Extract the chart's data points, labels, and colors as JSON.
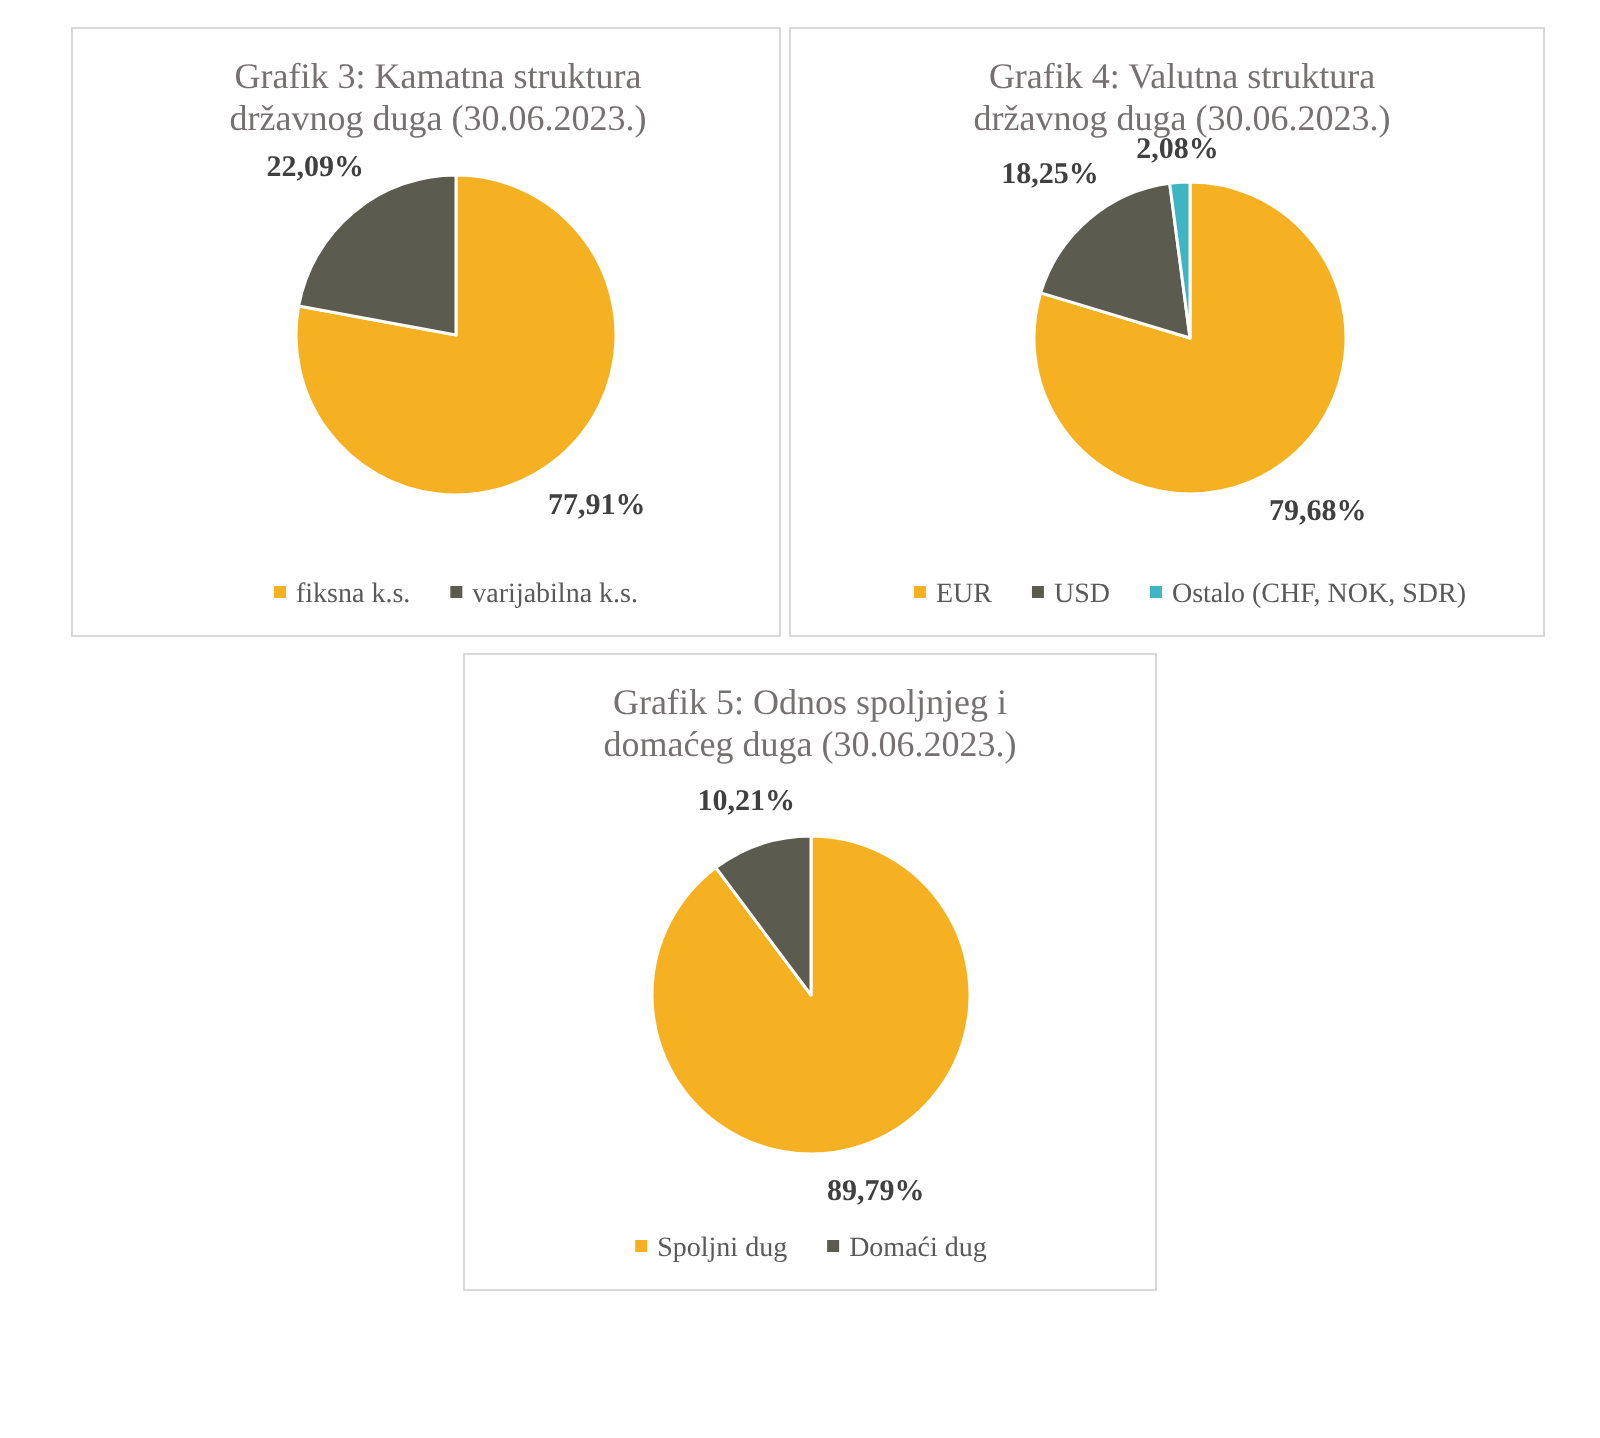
{
  "chart_data": [
    {
      "type": "pie",
      "title": "Grafik 3: Kamatna struktura državnog duga (30.06.2023.)",
      "categories": [
        "fiksna k.s.",
        "varijabilna k.s."
      ],
      "values": [
        77.91,
        22.09
      ],
      "colors": [
        "#f5b122",
        "#5b5c4f"
      ],
      "value_labels": [
        "77,91%",
        "22,09%"
      ],
      "legend": "bottom"
    },
    {
      "type": "pie",
      "title": "Grafik 4: Valutna struktura državnog duga (30.06.2023.)",
      "categories": [
        "EUR",
        "USD",
        "Ostalo (CHF, NOK, SDR)"
      ],
      "values": [
        79.68,
        18.25,
        2.08
      ],
      "colors": [
        "#f5b122",
        "#5b5c4f",
        "#3fb5c2"
      ],
      "value_labels": [
        "79,68%",
        "18,25%",
        "2,08%"
      ],
      "legend": "bottom"
    },
    {
      "type": "pie",
      "title": "Grafik 5: Odnos spoljnjeg i domaćeg duga (30.06.2023.)",
      "categories": [
        "Spoljni dug",
        "Domaći dug"
      ],
      "values": [
        89.79,
        10.21
      ],
      "colors": [
        "#f5b122",
        "#5b5c4f"
      ],
      "value_labels": [
        "89,79%",
        "10,21%"
      ],
      "legend": "bottom"
    }
  ]
}
